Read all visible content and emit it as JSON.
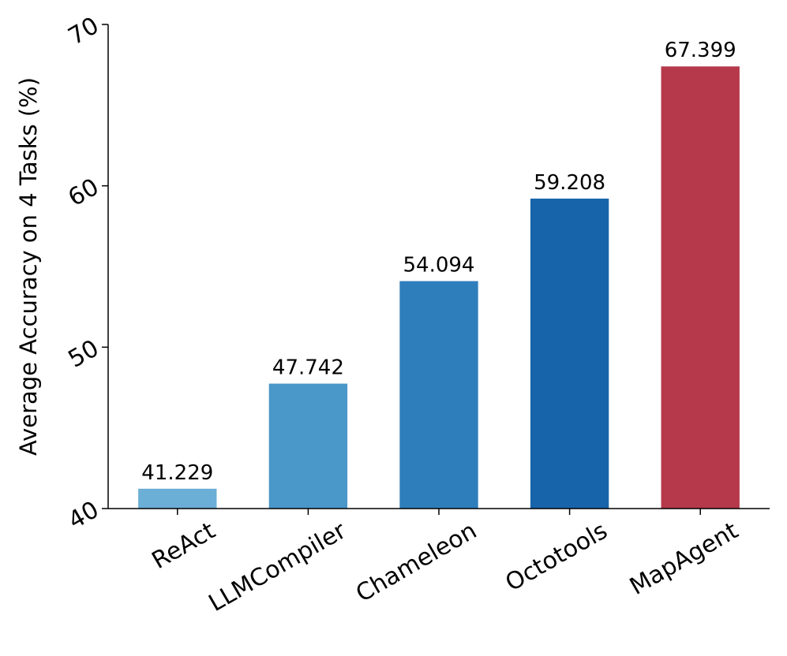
{
  "chart_data": {
    "type": "bar",
    "y_label": "Average Accuracy on 4 Tasks (%)",
    "categories": [
      "ReAct",
      "LLMCompiler",
      "Chameleon",
      "Octotools",
      "MapAgent"
    ],
    "values": [
      41.229,
      47.742,
      54.094,
      59.208,
      67.399
    ],
    "colors": [
      "#6baed6",
      "#4a98c9",
      "#2f7ebc",
      "#1764ab",
      "#b5394a"
    ],
    "ylim": [
      40,
      70
    ],
    "yticks": [
      40,
      50,
      60,
      70
    ],
    "grid": false
  }
}
